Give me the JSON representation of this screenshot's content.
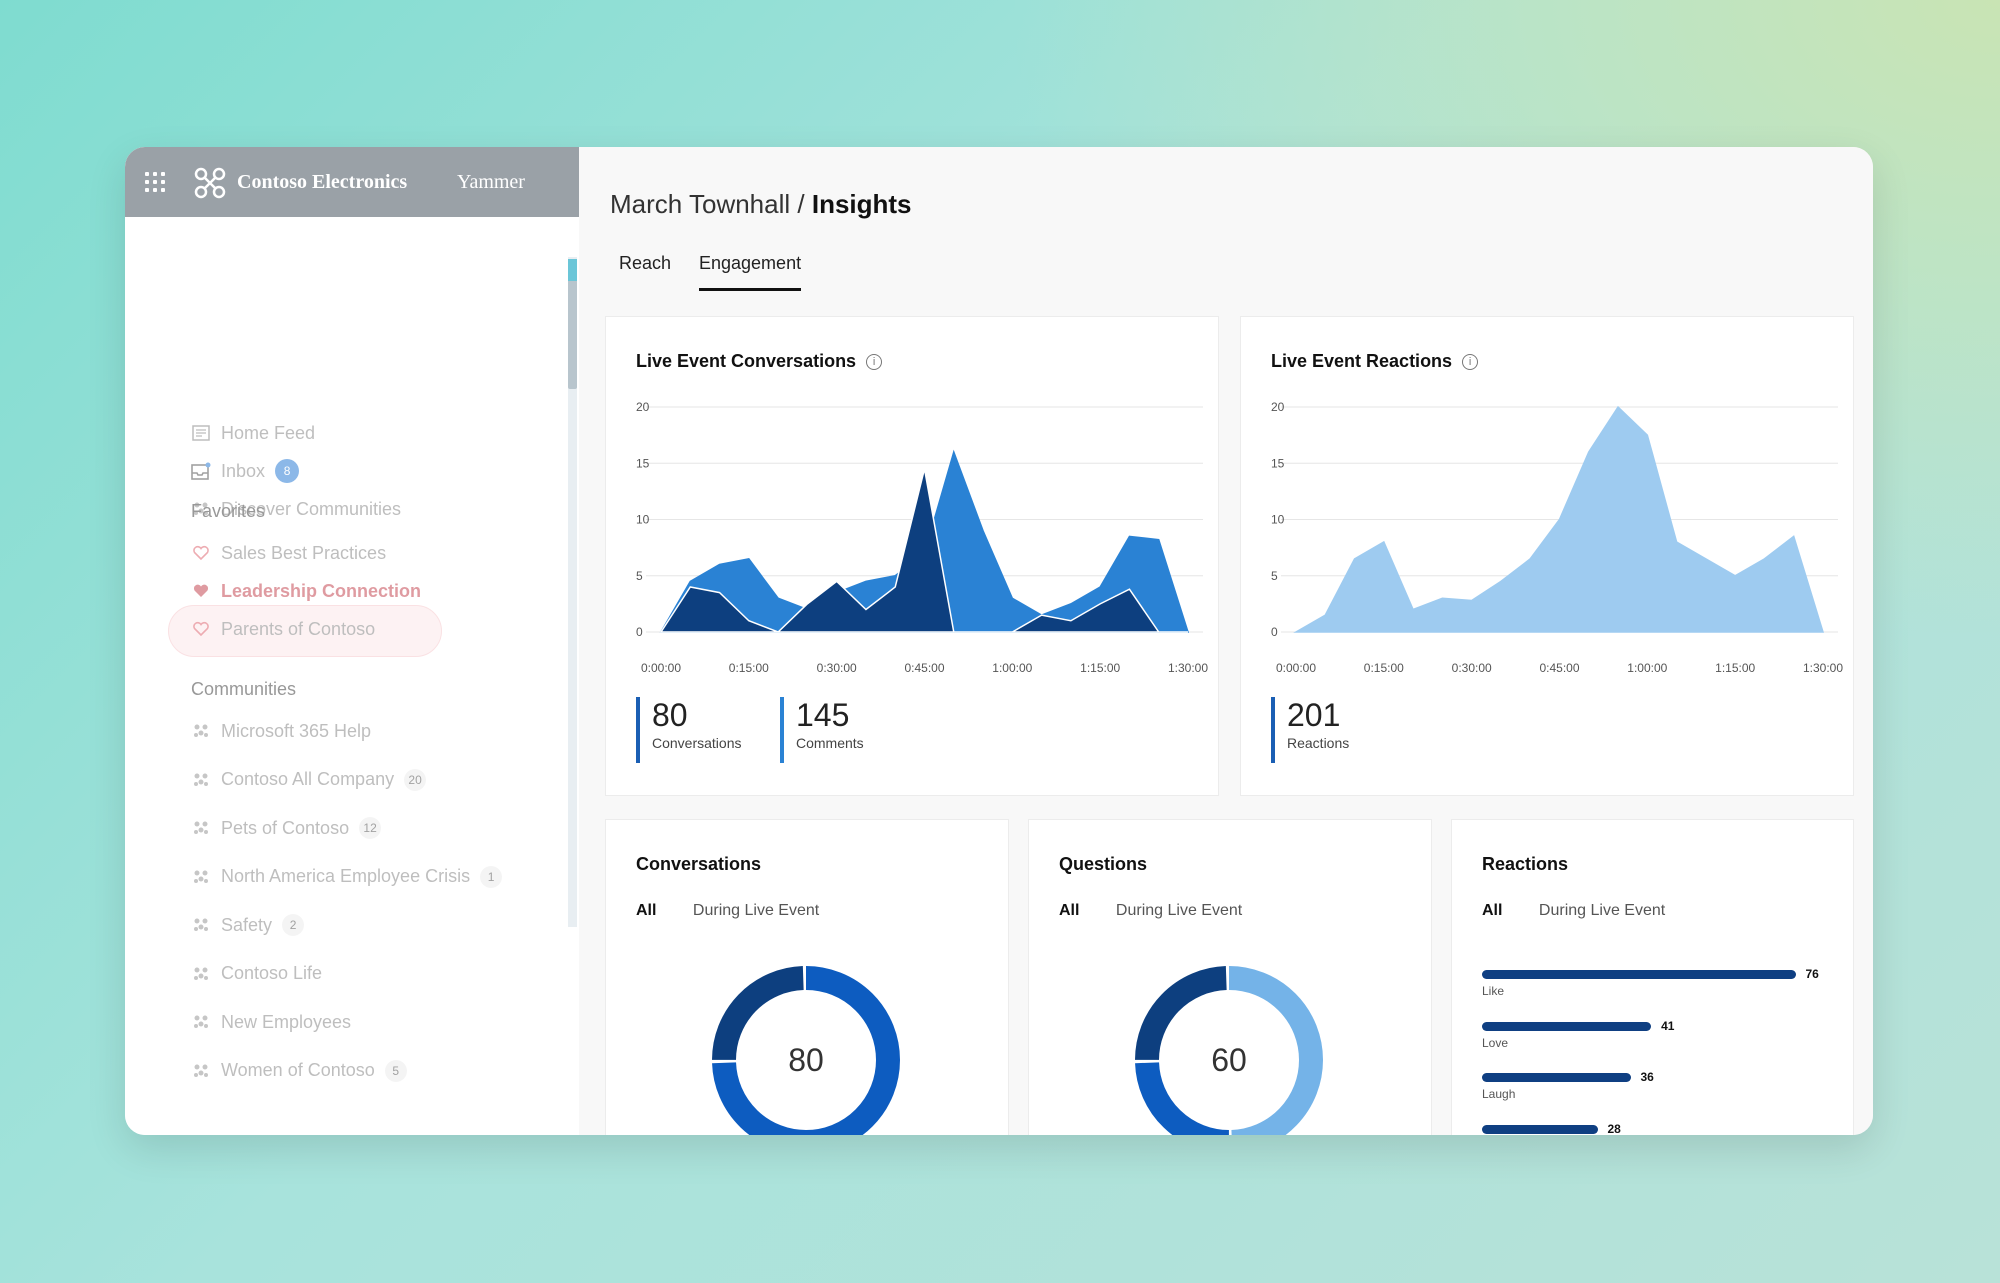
{
  "topbar": {
    "org_name": "Contoso Electronics",
    "app_name": "Yammer"
  },
  "nav": {
    "home_feed": "Home Feed",
    "inbox": "Inbox",
    "inbox_count": "8",
    "discover": "Discover Communities",
    "favorites_heading": "Favorites",
    "favorites": [
      {
        "label": "Sales Best Practices"
      },
      {
        "label": "Leadership Connection",
        "active": true
      },
      {
        "label": "Parents of Contoso"
      }
    ],
    "communities_heading": "Communities",
    "communities": [
      {
        "label": "Microsoft 365 Help",
        "count": ""
      },
      {
        "label": "Contoso All Company",
        "count": "20"
      },
      {
        "label": "Pets of Contoso",
        "count": "12"
      },
      {
        "label": "North America Employee Crisis",
        "count": "1"
      },
      {
        "label": "Safety",
        "count": "2"
      },
      {
        "label": "Contoso Life",
        "count": ""
      },
      {
        "label": "New Employees",
        "count": ""
      },
      {
        "label": "Women of Contoso",
        "count": "5"
      }
    ]
  },
  "breadcrumb": {
    "parent": "March Townhall",
    "separator": " / ",
    "current": "Insights"
  },
  "tabs": [
    {
      "label": "Reach"
    },
    {
      "label": "Engagement",
      "active": true
    }
  ],
  "colors": {
    "dark_blue": "#0d3f7f",
    "mid_blue": "#2a82d4",
    "light_blue": "#9ecbf0",
    "accent_red": "#c64a55"
  },
  "cards": {
    "conversations_chart_title": "Live Event Conversations",
    "reactions_chart_title": "Live Event Reactions",
    "conversations_stats": [
      {
        "value": "80",
        "label": "Conversations"
      },
      {
        "value": "145",
        "label": "Comments"
      }
    ],
    "reactions_stats": [
      {
        "value": "201",
        "label": "Reactions"
      }
    ],
    "conversations_title": "Conversations",
    "questions_title": "Questions",
    "reactions_title": "Reactions",
    "filter_all": "All",
    "filter_live": "During Live Event",
    "conversations_donut_value": "80",
    "questions_donut_value": "60"
  },
  "chart_data": [
    {
      "type": "area",
      "title": "Live Event Conversations",
      "x": [
        "0:00:00",
        "0:05:00",
        "0:10:00",
        "0:15:00",
        "0:20:00",
        "0:25:00",
        "0:30:00",
        "0:35:00",
        "0:40:00",
        "0:45:00",
        "0:50:00",
        "0:55:00",
        "1:00:00",
        "1:05:00",
        "1:10:00",
        "1:15:00",
        "1:20:00",
        "1:25:00",
        "1:30:00"
      ],
      "xticks": [
        "0:00:00",
        "0:15:00",
        "0:30:00",
        "0:45:00",
        "1:00:00",
        "1:15:00",
        "1:30:00"
      ],
      "yticks": [
        0,
        5,
        10,
        15,
        20
      ],
      "ylim": [
        0,
        20
      ],
      "series": [
        {
          "values": [
            0,
            4.5,
            6,
            6.5,
            3,
            2,
            3.5,
            4.5,
            5,
            7,
            16,
            9,
            3,
            1.5,
            2.5,
            4,
            8.5,
            8.2,
            0
          ]
        },
        {
          "values": [
            0,
            4,
            3.5,
            1,
            0,
            2.5,
            4.5,
            2,
            4,
            14.5,
            0,
            0,
            0,
            1.5,
            1,
            2.5,
            3.8,
            0,
            0
          ]
        }
      ],
      "stats": [
        {
          "label": "Conversations",
          "value": 80
        },
        {
          "label": "Comments",
          "value": 145
        }
      ]
    },
    {
      "type": "area",
      "title": "Live Event Reactions",
      "x": [
        "0:00:00",
        "0:05:00",
        "0:10:00",
        "0:15:00",
        "0:20:00",
        "0:25:00",
        "0:30:00",
        "0:35:00",
        "0:40:00",
        "0:45:00",
        "0:50:00",
        "0:55:00",
        "1:00:00",
        "1:05:00",
        "1:10:00",
        "1:15:00",
        "1:20:00",
        "1:25:00",
        "1:30:00"
      ],
      "xticks": [
        "0:00:00",
        "0:15:00",
        "0:30:00",
        "0:45:00",
        "1:00:00",
        "1:15:00",
        "1:30:00"
      ],
      "yticks": [
        0,
        5,
        10,
        15,
        20
      ],
      "ylim": [
        0,
        20
      ],
      "series": [
        {
          "values": [
            0,
            1.5,
            6.5,
            8,
            2,
            3,
            2.8,
            4.5,
            6.5,
            10,
            16,
            20,
            17.5,
            8,
            6.5,
            5,
            6.5,
            8.5,
            0
          ]
        }
      ],
      "stats": [
        {
          "label": "Reactions",
          "value": 201
        }
      ]
    },
    {
      "type": "pie",
      "title": "Conversations",
      "center_label": "80",
      "slices": [
        {
          "value": 75,
          "color": "#0d5cc0"
        },
        {
          "value": 25,
          "color": "#0d3f7f"
        }
      ]
    },
    {
      "type": "pie",
      "title": "Questions",
      "center_label": "60",
      "slices": [
        {
          "value": 50,
          "color": "#74b3e8"
        },
        {
          "value": 25,
          "color": "#0d5cc0"
        },
        {
          "value": 25,
          "color": "#0d3f7f"
        }
      ]
    },
    {
      "type": "bar",
      "title": "Reactions",
      "orientation": "horizontal",
      "categories": [
        "Like",
        "Love",
        "Laugh",
        ""
      ],
      "values": [
        76,
        41,
        36,
        28
      ],
      "data_labels": [
        "76",
        "41",
        "36",
        "28"
      ],
      "xlim": [
        0,
        80
      ]
    }
  ]
}
